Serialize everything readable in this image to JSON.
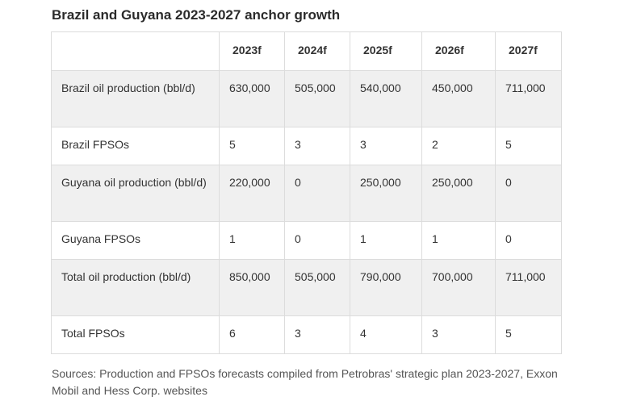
{
  "title": "Brazil and Guyana 2023-2027 anchor growth",
  "table": {
    "headers": [
      "",
      "2023f",
      "2024f",
      "2025f",
      "2026f",
      "2027f"
    ],
    "rows": [
      {
        "label": "Brazil oil production (bbl/d)",
        "values": [
          "630,000",
          "505,000",
          "540,000",
          "450,000",
          "711,000"
        ]
      },
      {
        "label": "Brazil FPSOs",
        "values": [
          "5",
          "3",
          "3",
          "2",
          "5"
        ]
      },
      {
        "label": "Guyana oil production (bbl/d)",
        "values": [
          "220,000",
          "0",
          "250,000",
          "250,000",
          "0"
        ]
      },
      {
        "label": "Guyana FPSOs",
        "values": [
          "1",
          "0",
          "1",
          "1",
          "0"
        ]
      },
      {
        "label": "Total oil production (bbl/d)",
        "values": [
          "850,000",
          "505,000",
          "790,000",
          "700,000",
          "711,000"
        ]
      },
      {
        "label": "Total FPSOs",
        "values": [
          "6",
          "3",
          "4",
          "3",
          "5"
        ]
      }
    ]
  },
  "sources": "Sources: Production and FPSOs forecasts compiled from Petrobras' strategic plan 2023-2027, Exxon Mobil and Hess Corp. websites"
}
